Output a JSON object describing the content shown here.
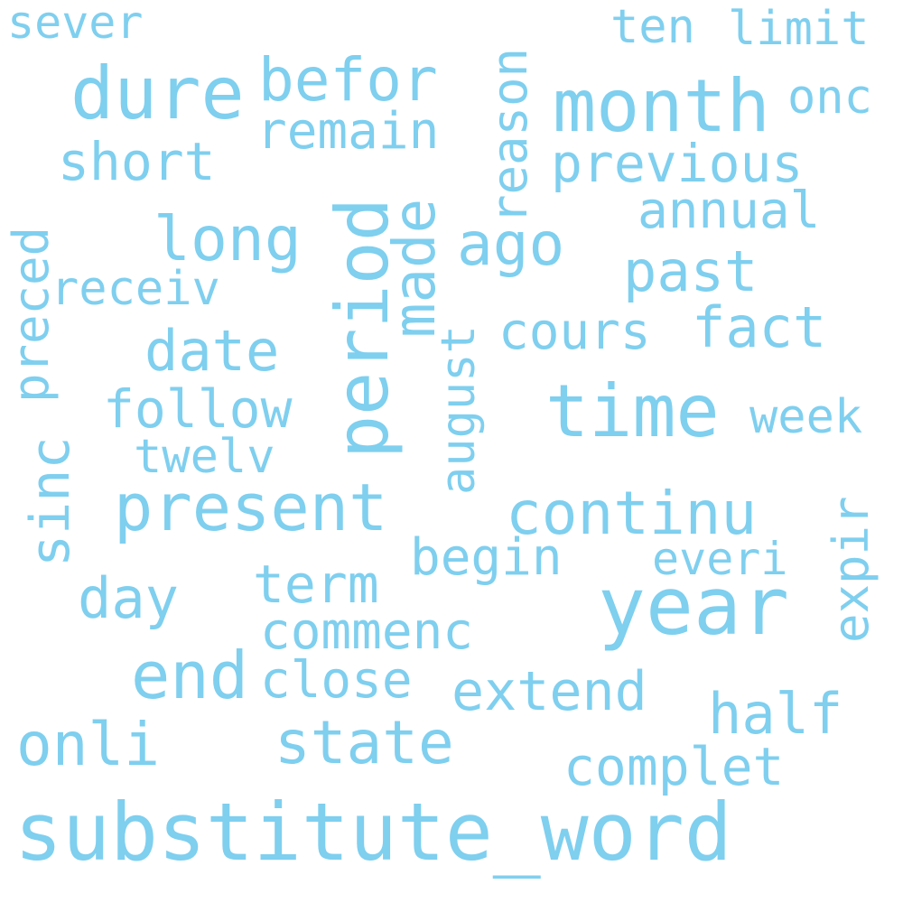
{
  "style": {
    "background": "#ffffff",
    "word_color": "#7fcfef"
  },
  "words": [
    {
      "id": "substitute-word",
      "text": "substitute_word"
    },
    {
      "id": "year",
      "text": "year"
    },
    {
      "id": "month",
      "text": "month"
    },
    {
      "id": "period",
      "text": "period"
    },
    {
      "id": "time",
      "text": "time"
    },
    {
      "id": "dure",
      "text": "dure"
    },
    {
      "id": "present",
      "text": "present"
    },
    {
      "id": "end",
      "text": "end"
    },
    {
      "id": "befor",
      "text": "befor"
    },
    {
      "id": "long",
      "text": "long"
    },
    {
      "id": "ago",
      "text": "ago"
    },
    {
      "id": "continu",
      "text": "continu"
    },
    {
      "id": "state",
      "text": "state"
    },
    {
      "id": "onli",
      "text": "onli"
    },
    {
      "id": "made",
      "text": "made"
    },
    {
      "id": "reason",
      "text": "reason"
    },
    {
      "id": "date",
      "text": "date"
    },
    {
      "id": "past",
      "text": "past"
    },
    {
      "id": "fact",
      "text": "fact"
    },
    {
      "id": "day",
      "text": "day"
    },
    {
      "id": "half",
      "text": "half"
    },
    {
      "id": "previous",
      "text": "previous"
    },
    {
      "id": "remain",
      "text": "remain"
    },
    {
      "id": "short",
      "text": "short"
    },
    {
      "id": "follow",
      "text": "follow"
    },
    {
      "id": "cours",
      "text": "cours"
    },
    {
      "id": "sinc",
      "text": "sinc"
    },
    {
      "id": "preced",
      "text": "preced"
    },
    {
      "id": "august",
      "text": "august"
    },
    {
      "id": "term",
      "text": "term"
    },
    {
      "id": "commenc",
      "text": "commenc"
    },
    {
      "id": "close",
      "text": "close"
    },
    {
      "id": "extend",
      "text": "extend"
    },
    {
      "id": "complet",
      "text": "complet"
    },
    {
      "id": "begin",
      "text": "begin"
    },
    {
      "id": "expir",
      "text": "expir"
    },
    {
      "id": "annual",
      "text": "annual"
    },
    {
      "id": "receiv",
      "text": "receiv"
    },
    {
      "id": "twelv",
      "text": "twelv"
    },
    {
      "id": "week",
      "text": "week"
    },
    {
      "id": "everi",
      "text": "everi"
    },
    {
      "id": "onc",
      "text": "onc"
    },
    {
      "id": "ten",
      "text": "ten"
    },
    {
      "id": "limit",
      "text": "limit"
    },
    {
      "id": "sever",
      "text": "sever"
    }
  ]
}
